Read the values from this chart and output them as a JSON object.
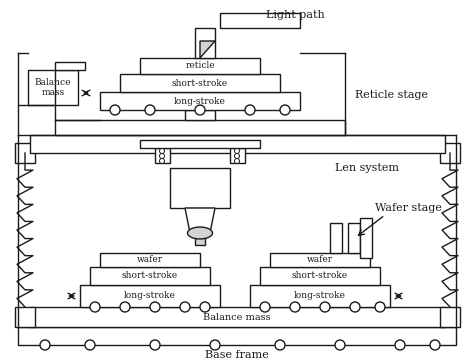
{
  "title": "",
  "background_color": "#ffffff",
  "line_color": "#1a1a1a",
  "text_color": "#1a1a1a",
  "labels": {
    "light_path": "Light path",
    "reticle_stage": "Reticle stage",
    "reticle": "reticle",
    "short_stroke_top": "short-stroke",
    "long_stroke_top": "long-stroke",
    "balance_mass_top": "Balance\nmass",
    "len_system": "Len system",
    "wafer_stage": "Wafer stage",
    "wafer_left": "wafer",
    "short_stroke_left": "short-stroke",
    "long_stroke_left": "long-stroke",
    "wafer_right": "wafer",
    "short_stroke_right": "short-stroke",
    "long_stroke_right": "long-stroke",
    "balance_mass_bottom": "Balance mass",
    "base_frame": "Base frame"
  }
}
